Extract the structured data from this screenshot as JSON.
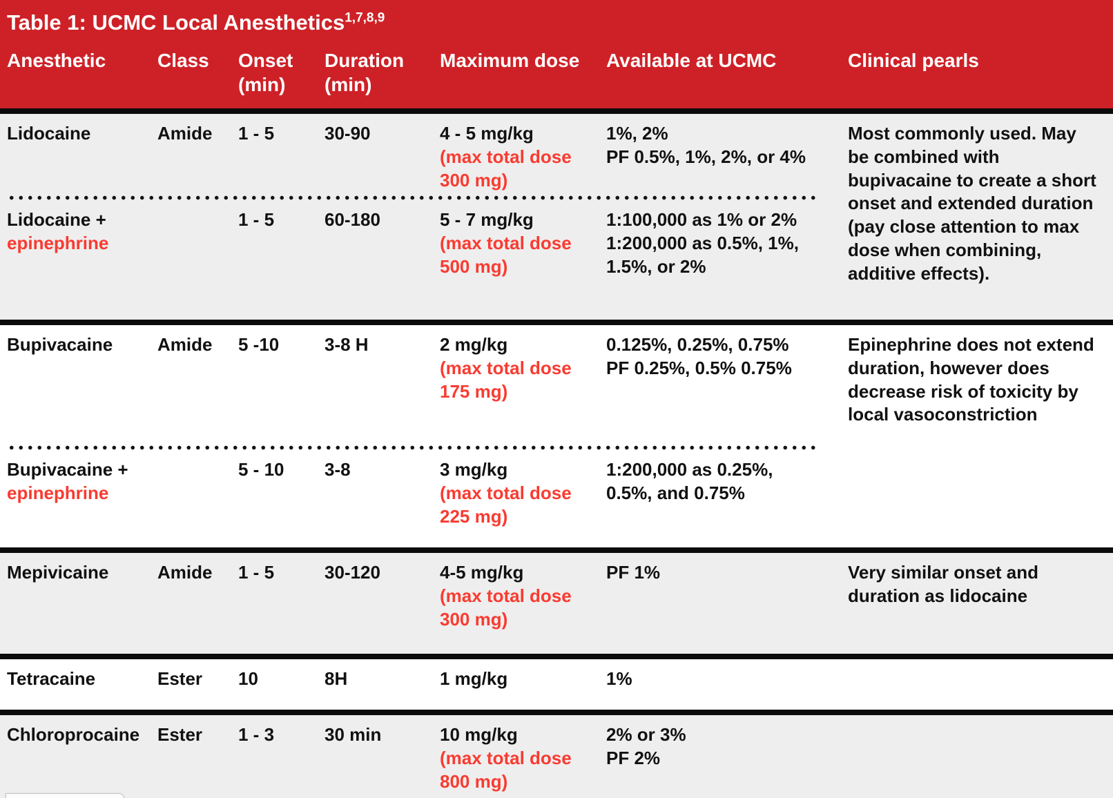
{
  "colors": {
    "header_bg": "#ce2127",
    "accent_red_text": "#f93b31",
    "row_alt_bg": "#eeeeee",
    "divider_black": "#0b0b0b"
  },
  "header": {
    "title": "Table 1: UCMC Local Anesthetics",
    "title_sup": "1,7,8,9",
    "columns": [
      "Anesthetic",
      "Class",
      "Onset",
      "Duration",
      "Maximum dose",
      "Available at UCMC",
      "Clinical pearls"
    ],
    "onset_sub": "(min)",
    "duration_sub": "(min)"
  },
  "groups": [
    {
      "pearls": "Most commonly used. May\nbe combined with\nbupivacaine to create a short\nonset and extended duration\n(pay close attention to max\ndose when combining,\nadditive effects).",
      "rows": [
        {
          "name": "Lidocaine",
          "name2": "",
          "class": "Amide",
          "onset": "1 - 5",
          "duration": "30-90",
          "dose": "4 - 5 mg/kg",
          "dose_note": "(max total dose\n300 mg)",
          "available": "1%, 2%\nPF 0.5%, 1%, 2%, or 4%"
        },
        {
          "name": "Lidocaine +",
          "name2": "epinephrine",
          "class": "",
          "onset": "1 - 5",
          "duration": "60-180",
          "dose": "5 - 7 mg/kg",
          "dose_note": "(max total dose\n500 mg)",
          "available": "1:100,000 as 1% or 2%\n1:200,000 as 0.5%, 1%,\n1.5%, or 2%"
        }
      ]
    },
    {
      "pearls": "Epinephrine does not extend\nduration, however does\ndecrease risk of toxicity by\nlocal vasoconstriction",
      "rows": [
        {
          "name": "Bupivacaine",
          "name2": "",
          "class": "Amide",
          "onset": "5 -10",
          "duration": "3-8 H",
          "dose": "2 mg/kg",
          "dose_note": "(max total dose\n175 mg)",
          "available": "0.125%, 0.25%, 0.75%\nPF 0.25%, 0.5% 0.75%"
        },
        {
          "name": "Bupivacaine +",
          "name2": "epinephrine",
          "class": "",
          "onset": "5 - 10",
          "duration": "3-8",
          "dose": "3 mg/kg",
          "dose_note": "(max total dose\n225 mg)",
          "available": "1:200,000 as 0.25%,\n0.5%, and 0.75%"
        }
      ]
    },
    {
      "pearls": "Very similar onset and\nduration as lidocaine",
      "rows": [
        {
          "name": "Mepivicaine",
          "name2": "",
          "class": "Amide",
          "onset": "1 - 5",
          "duration": "30-120",
          "dose": "4-5 mg/kg",
          "dose_note": "(max total dose\n300 mg)",
          "available": "PF 1%"
        }
      ]
    },
    {
      "pearls": "",
      "rows": [
        {
          "name": "Tetracaine",
          "name2": "",
          "class": "Ester",
          "onset": "10",
          "duration": "8H",
          "dose": "1 mg/kg",
          "dose_note": "",
          "available": "1%"
        }
      ]
    },
    {
      "pearls": "",
      "rows": [
        {
          "name": "Chloroprocaine",
          "name2": "",
          "class": "Ester",
          "onset": "1 - 3",
          "duration": "30 min",
          "dose": "10 mg/kg",
          "dose_note": "(max total dose\n800 mg)",
          "available": "2% or 3%\nPF 2%"
        }
      ]
    }
  ]
}
